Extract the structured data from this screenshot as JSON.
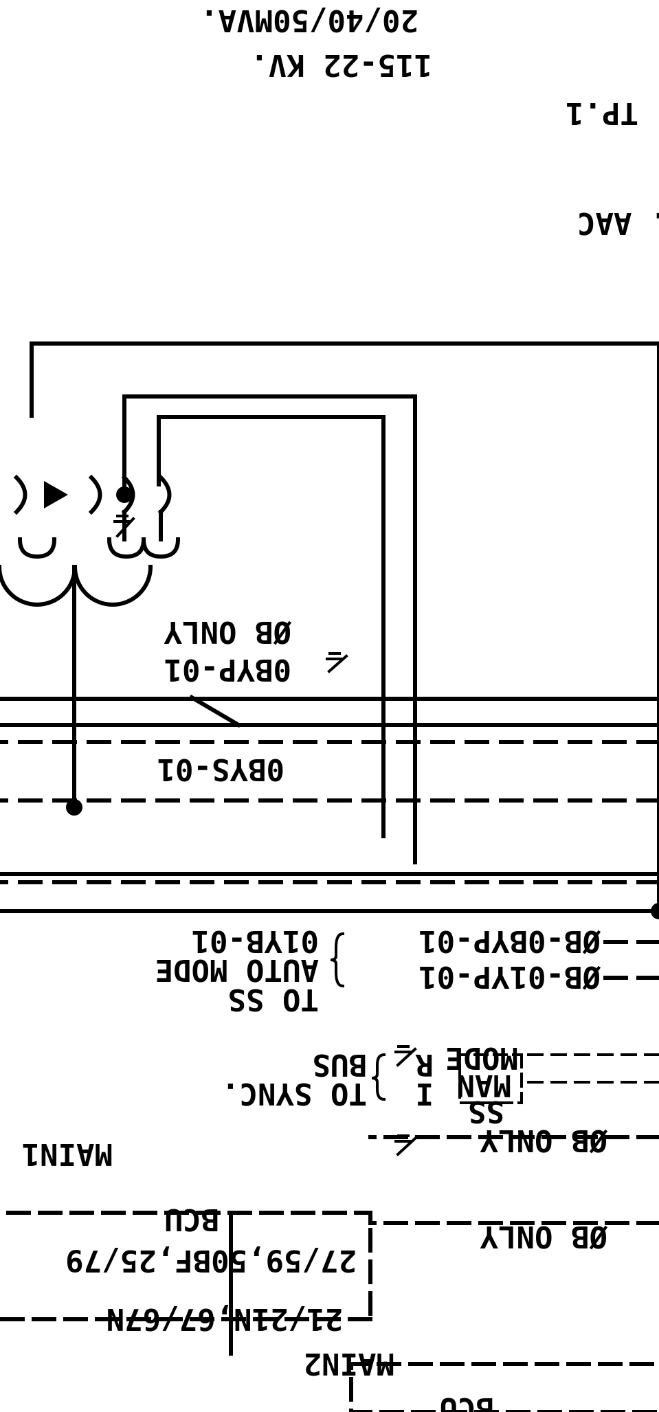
{
  "drawing": {
    "orientation": "rotated 180 degrees",
    "colors": {
      "ink": "#000000",
      "paper": "#ffffff"
    }
  },
  "header": {
    "rating": "20/40/50MVA.",
    "voltage": "115-22 KV.",
    "transformer_id": "TP.1",
    "cooling": "m.  AAC"
  },
  "wires": {
    "bypass_meter": "0BYP-01",
    "bypass_only": "ØB ONLY",
    "sync_meter": "0BYS-01"
  },
  "auto_mode": {
    "link_1": "ØB-0BYP-01",
    "link_2": "ØB-01YP-01",
    "target_1": "01YB-01",
    "target_2": "AUTO MODE",
    "target_3": "TO SS"
  },
  "manual_mode": {
    "box_line_1": "MODE",
    "box_line_2": "MAN",
    "box_line_3": "SS",
    "r_tag": "R",
    "i_tag": "I",
    "bus": "BUS",
    "sync": "TO SYNC."
  },
  "main1": {
    "title": "MAIN1",
    "bcu": "BCU",
    "functions_1": "27/59,50BF,25/79",
    "functions_2": "21/21N,67/67N",
    "phase_note": "ØB ONLY"
  },
  "main2": {
    "title": "MAIN2",
    "bcu": "BCU",
    "phase_note": "ØB ONLY"
  }
}
